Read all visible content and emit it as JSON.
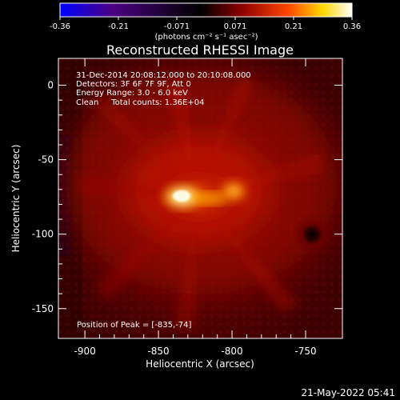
{
  "chart_data": {
    "type": "heatmap",
    "title": "Reconstructed RHESSI Image",
    "xlabel": "Heliocentric X (arcsec)",
    "ylabel": "Heliocentric Y (arcsec)",
    "xlim": [
      -918,
      -725
    ],
    "ylim": [
      -170,
      18
    ],
    "xticks": [
      -900,
      -850,
      -800,
      -750
    ],
    "yticks": [
      0,
      -50,
      -100,
      -150
    ],
    "colorbar": {
      "ticks": [
        "-0.36",
        "-0.21",
        "-0.071",
        "0.071",
        "0.21",
        "0.36"
      ],
      "unit_label": "(photons cm⁻² s⁻¹ asec⁻²)",
      "min": -0.36,
      "max": 0.36,
      "colors": [
        "#0000ff",
        "#4b0082",
        "#000000",
        "#8b0000",
        "#ff4500",
        "#ffd700",
        "#ffffff"
      ]
    },
    "annotations": [
      "31-Dec-2014 20:08:12.000 to 20:10:08.000",
      "Detectors: 3F 6F 7F 9F, Att 0",
      "Energy Range: 3.0 - 6.0 keV",
      "Clean     Total counts: 1.36E+04"
    ],
    "peak_text": "Position of Peak = [-835,-74]",
    "sources": [
      {
        "x": -835,
        "y": -74,
        "rx": 13,
        "ry": 9,
        "intensity": 0.36
      },
      {
        "x": -804,
        "y": -68,
        "rx": 9,
        "ry": 9,
        "intensity": 0.24
      },
      {
        "x": -820,
        "y": -76,
        "rx": 34,
        "ry": 22,
        "intensity": 0.14
      }
    ],
    "negative_ring": {
      "x": -745,
      "y": -95,
      "intensity": -0.08
    }
  },
  "footer": {
    "timestamp": "21-May-2022 05:41"
  }
}
